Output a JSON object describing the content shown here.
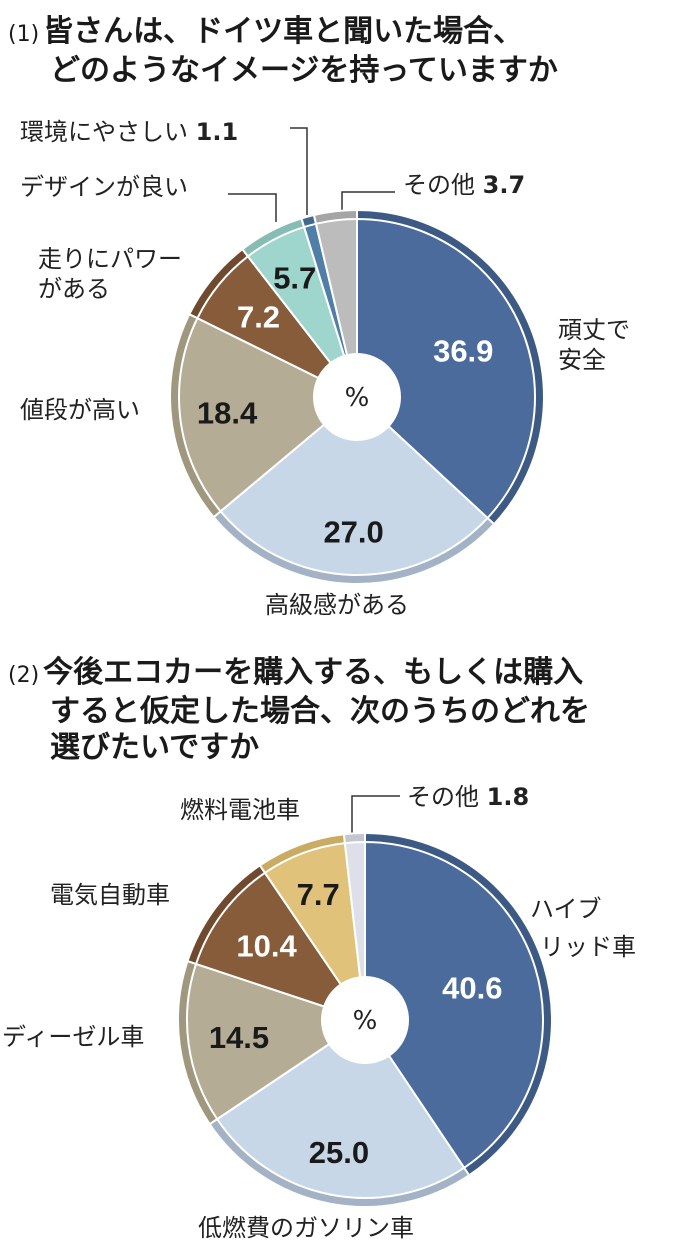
{
  "chart_data": [
    {
      "type": "pie",
      "number": "(1)",
      "title": [
        "皆さんは、ドイツ車と聞いた場合、",
        "どのようなイメージを持っていますか"
      ],
      "center_label": "%",
      "donut_hole": true,
      "start": "top, clockwise",
      "slices": [
        {
          "label": "頑丈で安全",
          "value": 36.9,
          "display": "36.9",
          "color": "#4a6b9b",
          "edge": "#3d5a84",
          "text_color": "#ffffff"
        },
        {
          "label": "高級感がある",
          "value": 27.0,
          "display": "27.0",
          "color": "#c8d7e8",
          "edge": "#a3b3c5",
          "text_color": "#1a1a1a"
        },
        {
          "label": "値段が高い",
          "value": 18.4,
          "display": "18.4",
          "color": "#b5ac96",
          "edge": "#a0977f",
          "text_color": "#1a1a1a"
        },
        {
          "label": "走りにパワーがある",
          "value": 7.2,
          "display": "7.2",
          "color": "#875c3a",
          "edge": "#6f4a2e",
          "text_color": "#ffffff"
        },
        {
          "label": "デザインが良い",
          "value": 5.7,
          "display": "5.7",
          "color": "#9ed6cd",
          "edge": "#86bcb3",
          "text_color": "#1a1a1a"
        },
        {
          "label": "環境にやさしい",
          "value": 1.1,
          "display": "1.1",
          "color": "#4f7fa8",
          "edge": "#42698b",
          "text_color": "#1a1a1a"
        },
        {
          "label": "その他",
          "value": 3.7,
          "display": "3.7",
          "color": "#bcbcbc",
          "edge": "#a5a5a5",
          "text_color": "#1a1a1a"
        }
      ]
    },
    {
      "type": "pie",
      "number": "(2)",
      "title": [
        "今後エコカーを購入する、もしくは購入",
        "すると仮定した場合、次のうちのどれを",
        "選びたいですか"
      ],
      "center_label": "%",
      "donut_hole": true,
      "start": "top, clockwise",
      "slices": [
        {
          "label": "ハイブリッド車",
          "value": 40.6,
          "display": "40.6",
          "color": "#4a6b9b",
          "edge": "#3d5a84",
          "text_color": "#ffffff"
        },
        {
          "label": "低燃費のガソリン車",
          "value": 25.0,
          "display": "25.0",
          "color": "#c8d7e8",
          "edge": "#a3b3c5",
          "text_color": "#1a1a1a"
        },
        {
          "label": "ディーゼル車",
          "value": 14.5,
          "display": "14.5",
          "color": "#b5ac96",
          "edge": "#a0977f",
          "text_color": "#1a1a1a"
        },
        {
          "label": "電気自動車",
          "value": 10.4,
          "display": "10.4",
          "color": "#875c3a",
          "edge": "#6f4a2e",
          "text_color": "#ffffff"
        },
        {
          "label": "燃料電池車",
          "value": 7.7,
          "display": "7.7",
          "color": "#e0c27a",
          "edge": "#c9ab64",
          "text_color": "#1a1a1a"
        },
        {
          "label": "その他",
          "value": 1.8,
          "display": "1.8",
          "color": "#dde0e8",
          "edge": "#c3c6cf",
          "text_color": "#1a1a1a"
        }
      ]
    }
  ],
  "labels1": {
    "s0a": "頑丈で",
    "s0b": "安全",
    "s1": "高級感がある",
    "s2": "値段が高い",
    "s3a": "走りにパワー",
    "s3b": "がある",
    "s4": "デザインが良い",
    "s5": "環境にやさしい",
    "s6": "その他"
  },
  "labels2": {
    "s0a": "ハイブ",
    "s0b": "リッド車",
    "s1": "低燃費のガソリン車",
    "s2": "ディーゼル車",
    "s3": "電気自動車",
    "s4": "燃料電池車",
    "s5": "その他"
  }
}
